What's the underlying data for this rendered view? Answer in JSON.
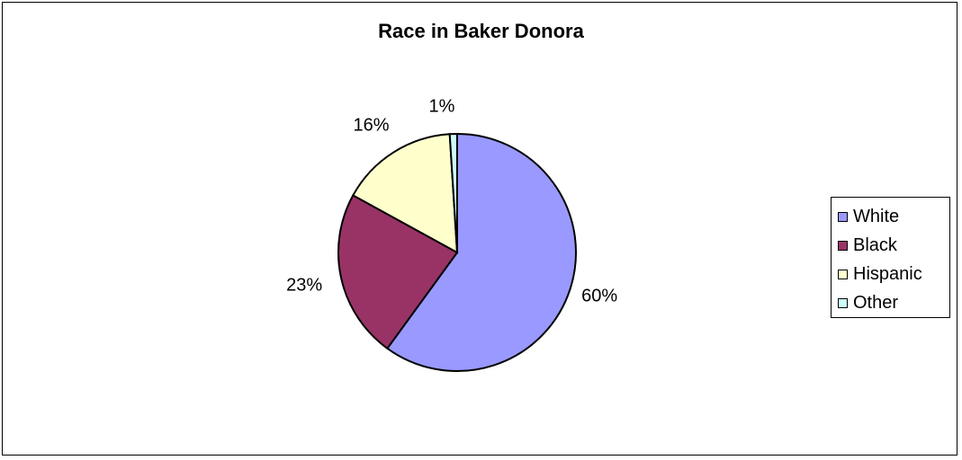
{
  "chart_data": {
    "type": "pie",
    "title": "Race in Baker Donora",
    "categories": [
      "White",
      "Black",
      "Hispanic",
      "Other"
    ],
    "values": [
      60,
      23,
      16,
      1
    ],
    "data_labels": [
      "60%",
      "23%",
      "16%",
      "1%"
    ],
    "colors": [
      "#9999ff",
      "#993366",
      "#ffffcc",
      "#ccffff"
    ],
    "legend_position": "right",
    "start_angle": "12 o'clock, clockwise"
  }
}
